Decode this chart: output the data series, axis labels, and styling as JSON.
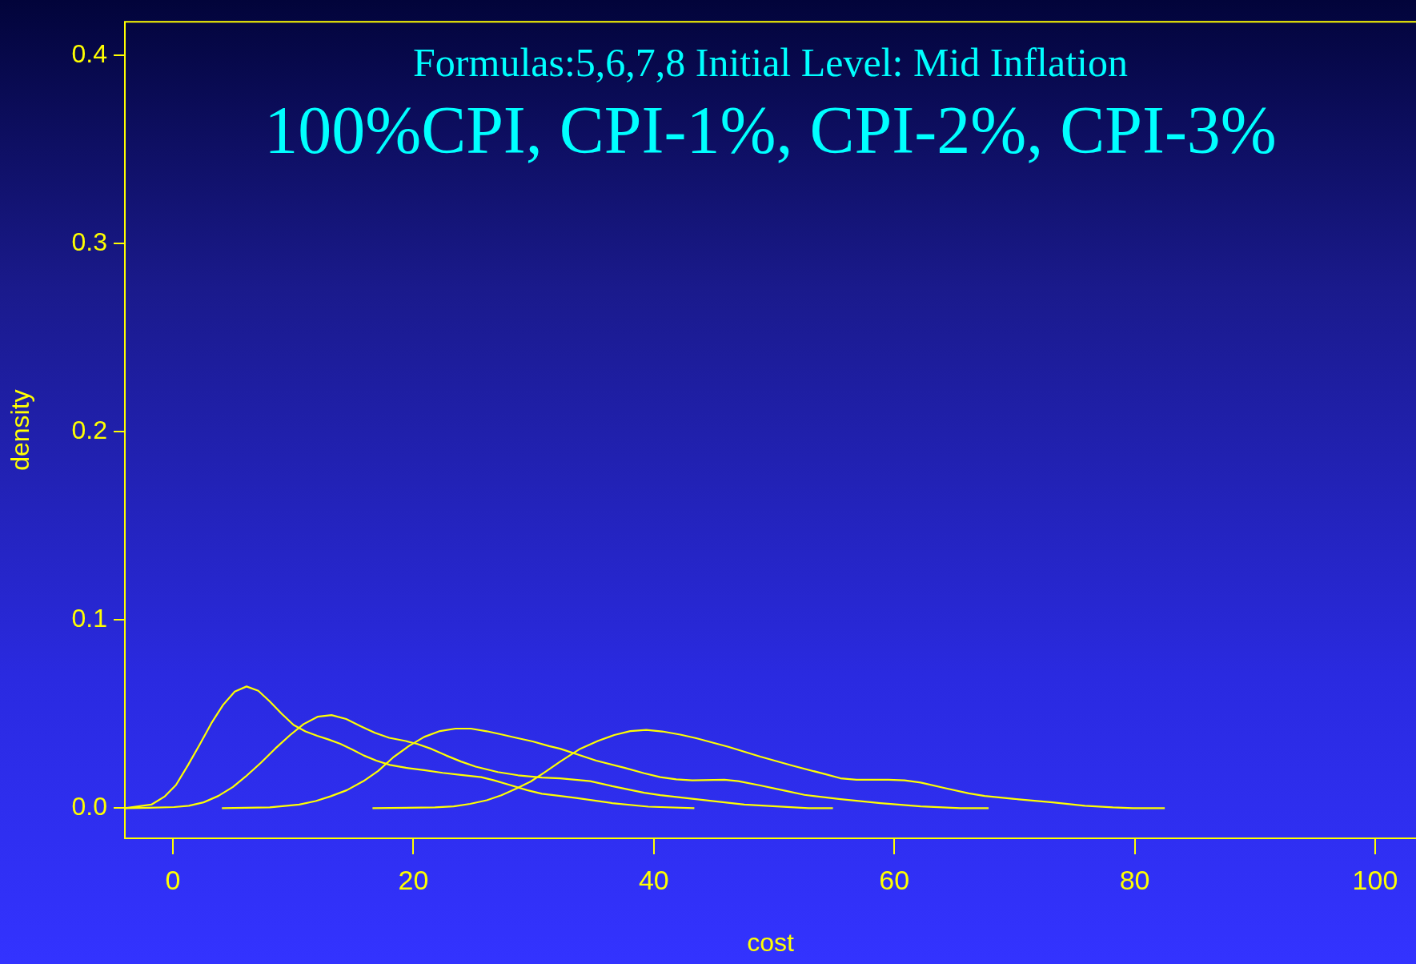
{
  "chart_data": {
    "type": "line",
    "title": "100%CPI, CPI-1%, CPI-2%, CPI-3%",
    "subtitle": "Formulas:5,6,7,8 Initial Level: Mid Inflation",
    "xlabel": "cost",
    "ylabel": "density",
    "xlim": [
      -4,
      103.4
    ],
    "xticks": [
      0,
      20,
      40,
      60,
      80,
      100
    ],
    "ylim": [
      -0.016,
      0.418
    ],
    "yticks": [
      {
        "value": 0,
        "label": "0.0"
      },
      0.1,
      0.2,
      0.3,
      0.4
    ],
    "grid": false,
    "legend": false,
    "marker": "none",
    "line_style": "solid",
    "series": [
      {
        "color": "#ffff00",
        "x": [
          -4,
          -1.8,
          -0.67,
          0.25,
          1.26,
          2.24,
          3.19,
          4.17,
          5.14,
          6.12,
          7.1,
          8.05,
          9.03,
          10.04,
          11.02,
          12,
          12.95,
          13.92,
          14.93,
          15.88,
          16.92,
          18.05,
          19.37,
          20.9,
          22.43,
          23.96,
          25.64,
          26.71,
          27.93,
          29.46,
          30.69,
          32.21,
          33.54,
          36.54,
          39.54,
          43.37
        ],
        "values": [
          0,
          0.0019,
          0.0063,
          0.0123,
          0.023,
          0.034,
          0.0451,
          0.0549,
          0.062,
          0.0647,
          0.0624,
          0.0568,
          0.0503,
          0.0442,
          0.0408,
          0.0385,
          0.0365,
          0.0342,
          0.0311,
          0.028,
          0.0253,
          0.023,
          0.0215,
          0.0202,
          0.0188,
          0.0177,
          0.0165,
          0.0148,
          0.0125,
          0.0096,
          0.0077,
          0.0065,
          0.0054,
          0.0027,
          0.0008,
          0
        ]
      },
      {
        "color": "#ffff00",
        "x": [
          -4,
          -2.04,
          0.1,
          1.32,
          2.54,
          3.77,
          4.99,
          6.06,
          7.29,
          8.51,
          9.73,
          10.87,
          12.03,
          13.19,
          14.41,
          15.61,
          16.8,
          17.99,
          19.37,
          20.29,
          21.51,
          22.73,
          23.96,
          25.18,
          27.02,
          28.7,
          30.69,
          32.21,
          34.71,
          36.54,
          39.2,
          40.54,
          43.2,
          47.53,
          52.86,
          54.9
        ],
        "values": [
          0,
          0.0002,
          0.0006,
          0.0013,
          0.0031,
          0.0065,
          0.0113,
          0.0169,
          0.024,
          0.0317,
          0.0388,
          0.0447,
          0.0486,
          0.0495,
          0.0474,
          0.0436,
          0.0401,
          0.0374,
          0.0357,
          0.0342,
          0.0315,
          0.028,
          0.0248,
          0.0221,
          0.0192,
          0.0175,
          0.0163,
          0.0159,
          0.0144,
          0.0117,
          0.0082,
          0.0069,
          0.005,
          0.0019,
          0,
          0
        ]
      },
      {
        "color": "#ffff00",
        "x": [
          4.07,
          8.05,
          10.5,
          11.87,
          13.1,
          14.47,
          15.85,
          17.07,
          18.3,
          19.61,
          20.9,
          22.21,
          23.5,
          24.78,
          26.1,
          27.32,
          28.55,
          29.92,
          31.3,
          32.21,
          35.21,
          37.54,
          39.2,
          40.54,
          41.87,
          43.2,
          45.87,
          47.03,
          48.86,
          50.86,
          52.53,
          55.53,
          58.86,
          62.2,
          65.5,
          67.85
        ],
        "values": [
          0,
          0.0004,
          0.0019,
          0.0038,
          0.0063,
          0.0096,
          0.0144,
          0.0198,
          0.0269,
          0.033,
          0.0379,
          0.041,
          0.0423,
          0.0423,
          0.0409,
          0.0392,
          0.0374,
          0.0355,
          0.033,
          0.0316,
          0.0253,
          0.0215,
          0.0186,
          0.0165,
          0.0153,
          0.0148,
          0.0151,
          0.0144,
          0.0121,
          0.0094,
          0.0071,
          0.0048,
          0.0027,
          0.001,
          0,
          0
        ]
      },
      {
        "color": "#ffff00",
        "x": [
          16.6,
          21.8,
          23.35,
          24.72,
          26.1,
          27.32,
          28.55,
          29.77,
          30.99,
          32.22,
          33.88,
          35.37,
          36.71,
          38.04,
          39.37,
          40.7,
          42.2,
          43.53,
          46.2,
          48.86,
          51.53,
          54.2,
          55.53,
          56.86,
          59.52,
          60.86,
          62.2,
          64.2,
          66.2,
          67.52,
          69.85,
          73.18,
          75.85,
          78.18,
          79.85,
          82.5
        ],
        "values": [
          0,
          0.0004,
          0.001,
          0.0023,
          0.0042,
          0.0069,
          0.0104,
          0.0142,
          0.0194,
          0.0248,
          0.0316,
          0.0358,
          0.0389,
          0.041,
          0.0416,
          0.0408,
          0.0391,
          0.0372,
          0.0326,
          0.0274,
          0.0226,
          0.0182,
          0.0159,
          0.0151,
          0.0151,
          0.0148,
          0.0136,
          0.0107,
          0.0079,
          0.0065,
          0.005,
          0.0031,
          0.0013,
          0.0004,
          0,
          0
        ]
      }
    ]
  }
}
